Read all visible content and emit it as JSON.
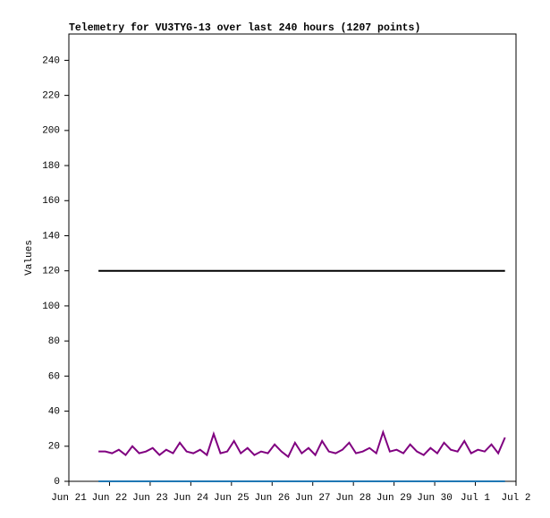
{
  "chart_data": {
    "type": "line",
    "title": "Telemetry for VU3TYG-13 over last 240 hours (1207 points)",
    "y_label": "Values",
    "x": [
      17.5,
      21.5,
      25.5,
      29.5,
      33.5,
      37.5,
      41.5,
      45.5,
      49.5,
      53.5,
      57.5,
      61.5,
      65.5,
      69.5,
      73.5,
      77.5,
      81.5,
      85.5,
      89.5,
      93.5,
      97.5,
      101.5,
      105.5,
      109.5,
      113.5,
      117.5,
      121.5,
      125.5,
      129.5,
      133.5,
      137.5,
      141.5,
      145.5,
      149.5,
      153.5,
      157.5,
      161.5,
      165.5,
      169.5,
      173.5,
      177.5,
      181.5,
      185.5,
      189.5,
      193.5,
      197.5,
      201.5,
      205.5,
      209.5,
      213.5,
      217.5,
      221.5,
      225.5,
      229.5,
      233.5,
      237.5,
      241.5,
      245.5,
      249.5,
      253.5,
      257.5
    ],
    "series": [
      {
        "color": "#000000",
        "values": [
          120,
          120,
          120,
          120,
          120,
          120,
          120,
          120,
          120,
          120,
          120,
          120,
          120,
          120,
          120,
          120,
          120,
          120,
          120,
          120,
          120,
          120,
          120,
          120,
          120,
          120,
          120,
          120,
          120,
          120,
          120,
          120,
          120,
          120,
          120,
          120,
          120,
          120,
          120,
          120,
          120,
          120,
          120,
          120,
          120,
          120,
          120,
          120,
          120,
          120,
          120,
          120,
          120,
          120,
          120,
          120,
          120,
          120,
          120,
          120,
          120
        ]
      },
      {
        "color": "#800080",
        "values": [
          17,
          17,
          16,
          18,
          15,
          20,
          16,
          17,
          19,
          15,
          18,
          16,
          22,
          17,
          16,
          18,
          15,
          27,
          16,
          17,
          23,
          16,
          19,
          15,
          17,
          16,
          21,
          17,
          14,
          22,
          16,
          19,
          15,
          23,
          17,
          16,
          18,
          22,
          16,
          17,
          19,
          16,
          28,
          17,
          18,
          16,
          21,
          17,
          15,
          19,
          16,
          22,
          18,
          17,
          23,
          16,
          18,
          17,
          21,
          16,
          25
        ]
      },
      {
        "color": "#1f77b4",
        "values": [
          0,
          0,
          0,
          0,
          0,
          0,
          0,
          0,
          0,
          0,
          0,
          0,
          0,
          0,
          0,
          0,
          0,
          0,
          0,
          0,
          0,
          0,
          0,
          0,
          0,
          0,
          0,
          0,
          0,
          0,
          0,
          0,
          0,
          0,
          0,
          0,
          0,
          0,
          0,
          0,
          0,
          0,
          0,
          0,
          0,
          0,
          0,
          0,
          0,
          0,
          0,
          0,
          0,
          0,
          0,
          0,
          0,
          0,
          0,
          0,
          0
        ]
      }
    ],
    "xlim": [
      0,
      264
    ],
    "xticks": [
      {
        "value": 0,
        "label": "Jun 21"
      },
      {
        "value": 24,
        "label": "Jun 22"
      },
      {
        "value": 48,
        "label": "Jun 23"
      },
      {
        "value": 72,
        "label": "Jun 24"
      },
      {
        "value": 96,
        "label": "Jun 25"
      },
      {
        "value": 120,
        "label": "Jun 26"
      },
      {
        "value": 144,
        "label": "Jun 27"
      },
      {
        "value": 168,
        "label": "Jun 28"
      },
      {
        "value": 192,
        "label": "Jun 29"
      },
      {
        "value": 216,
        "label": "Jun 30"
      },
      {
        "value": 240,
        "label": "Jul 1"
      },
      {
        "value": 264,
        "label": "Jul 2"
      }
    ],
    "ylim": [
      0,
      255
    ],
    "yticks": [
      0,
      20,
      40,
      60,
      80,
      100,
      120,
      140,
      160,
      180,
      200,
      220,
      240
    ]
  }
}
